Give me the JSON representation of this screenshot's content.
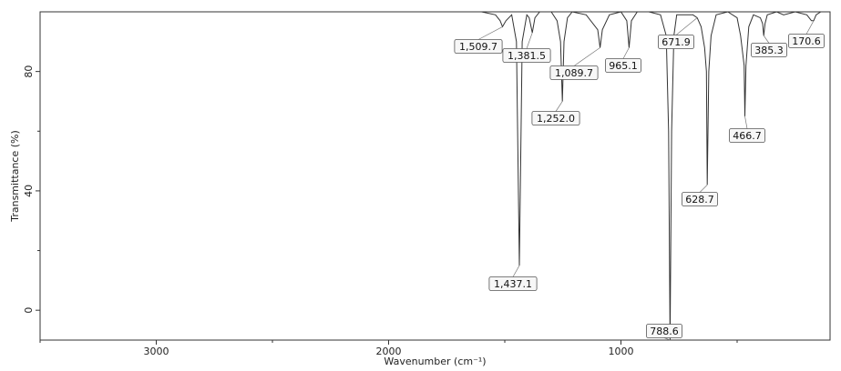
{
  "chart_data": {
    "type": "line",
    "title": "",
    "xlabel": "Wavenumber (cm⁻¹)",
    "ylabel": "Transmittance (%)",
    "xlim": [
      3500,
      100
    ],
    "ylim": [
      -10,
      100
    ],
    "x_reversed": true,
    "xticks": [
      "3000",
      "2000",
      "1000"
    ],
    "yticks": [
      "0",
      "40",
      "80"
    ],
    "grid": false,
    "legend": "none",
    "line_color": "#333333",
    "series": [
      {
        "x": [
          3500,
          1600,
          1540,
          1520,
          1509.7,
          1495,
          1470,
          1450,
          1437.1,
          1425,
          1405,
          1395,
          1381.5,
          1370,
          1350,
          1300,
          1275,
          1260,
          1252.0,
          1245,
          1230,
          1210,
          1150,
          1100,
          1089.7,
          1080,
          1050,
          1000,
          975,
          965.1,
          955,
          930,
          880,
          830,
          805,
          795,
          788.6,
          782,
          772,
          760,
          720,
          690,
          671.9,
          655,
          640,
          632,
          628.7,
          622,
          612,
          590,
          540,
          500,
          485,
          470,
          466.7,
          462,
          450,
          430,
          400,
          390,
          385.3,
          380,
          370,
          330,
          300,
          250,
          200,
          180,
          170.6,
          160,
          140,
          100
        ],
        "y": [
          100,
          100,
          99,
          97,
          95,
          97,
          99,
          90,
          15,
          90,
          99,
          98,
          93,
          98,
          100,
          100,
          97,
          90,
          70,
          90,
          98,
          100,
          99,
          94,
          88,
          94,
          99,
          100,
          97,
          88,
          97,
          100,
          100,
          99,
          92,
          60,
          -10,
          60,
          92,
          99,
          99,
          99,
          98,
          95,
          88,
          80,
          42,
          80,
          92,
          99,
          100,
          98,
          92,
          82,
          65,
          82,
          95,
          99,
          98,
          96,
          92,
          96,
          99,
          100,
          99,
          100,
          99,
          97,
          97,
          99,
          100,
          100
        ]
      }
    ],
    "peaks": [
      {
        "x": 1509.7,
        "y": 95,
        "label": "1,509.7"
      },
      {
        "x": 1381.5,
        "y": 93,
        "label": "1,381.5"
      },
      {
        "x": 1437.1,
        "y": 15,
        "label": "1,437.1"
      },
      {
        "x": 1252.0,
        "y": 70,
        "label": "1,252.0"
      },
      {
        "x": 1089.7,
        "y": 88,
        "label": "1,089.7"
      },
      {
        "x": 965.1,
        "y": 88,
        "label": "965.1"
      },
      {
        "x": 671.9,
        "y": 98,
        "label": "671.9"
      },
      {
        "x": 788.6,
        "y": -10,
        "label": "788.6"
      },
      {
        "x": 628.7,
        "y": 42,
        "label": "628.7"
      },
      {
        "x": 466.7,
        "y": 65,
        "label": "466.7"
      },
      {
        "x": 385.3,
        "y": 92,
        "label": "385.3"
      },
      {
        "x": 170.6,
        "y": 97,
        "label": "170.6"
      }
    ]
  }
}
